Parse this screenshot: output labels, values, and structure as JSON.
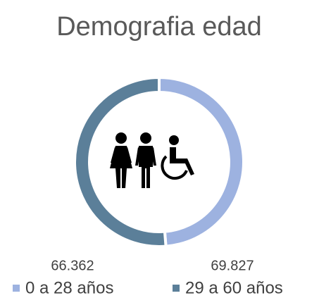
{
  "chart_data": {
    "type": "donut",
    "title": "Demografia edad",
    "categories": [
      "0 a 28 años",
      "29 a 60 años"
    ],
    "values": [
      66362,
      69827
    ],
    "value_labels": [
      "66.362",
      "69.827"
    ],
    "colors": [
      "#9db2e0",
      "#5b7f99"
    ]
  }
}
